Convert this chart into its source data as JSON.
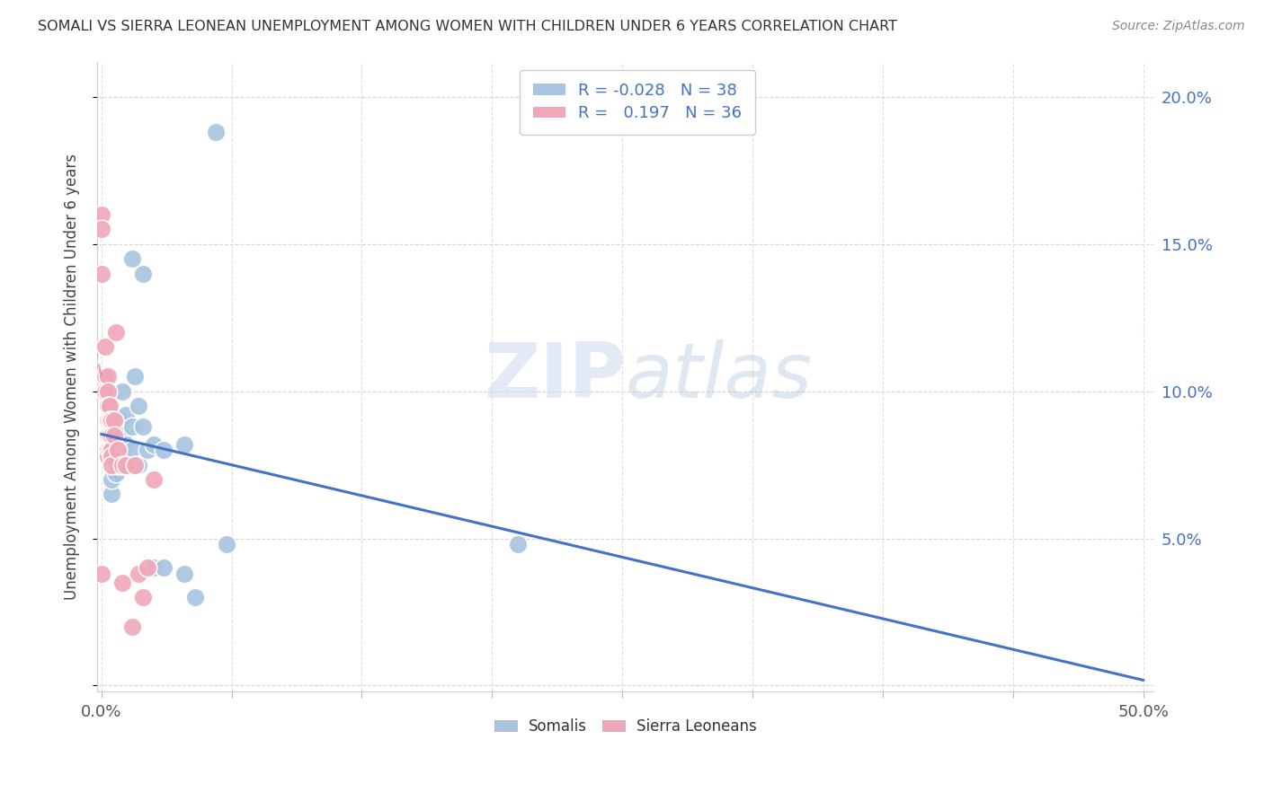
{
  "title": "SOMALI VS SIERRA LEONEAN UNEMPLOYMENT AMONG WOMEN WITH CHILDREN UNDER 6 YEARS CORRELATION CHART",
  "source": "Source: ZipAtlas.com",
  "ylabel": "Unemployment Among Women with Children Under 6 years",
  "xlim_min": 0.0,
  "xlim_max": 0.5,
  "ylim_min": 0.0,
  "ylim_max": 0.21,
  "xticks": [
    0.0,
    0.0625,
    0.125,
    0.1875,
    0.25,
    0.3125,
    0.375,
    0.4375,
    0.5
  ],
  "yticks": [
    0.0,
    0.05,
    0.1,
    0.15,
    0.2
  ],
  "ytick_right_labels": [
    "",
    "5.0%",
    "10.0%",
    "15.0%",
    "20.0%"
  ],
  "xtick_show_labels": [
    true,
    false,
    false,
    false,
    false,
    false,
    false,
    false,
    true
  ],
  "xtick_first_label": "0.0%",
  "xtick_last_label": "50.0%",
  "legend_R_somali": "-0.028",
  "legend_N_somali": "38",
  "legend_R_sierra": "0.197",
  "legend_N_sierra": "36",
  "somali_color": "#a8c4e0",
  "sierra_color": "#f0a8b8",
  "trend_somali_color": "#4472c4",
  "trend_sierra_color": "#e08090",
  "watermark_zip": "ZIP",
  "watermark_atlas": "atlas",
  "somali_x": [
    0.005,
    0.005,
    0.005,
    0.007,
    0.007,
    0.008,
    0.008,
    0.008,
    0.008,
    0.009,
    0.009,
    0.01,
    0.01,
    0.01,
    0.01,
    0.012,
    0.012,
    0.013,
    0.015,
    0.015,
    0.015,
    0.016,
    0.016,
    0.018,
    0.018,
    0.02,
    0.02,
    0.022,
    0.025,
    0.025,
    0.03,
    0.03,
    0.04,
    0.04,
    0.045,
    0.055,
    0.06,
    0.2
  ],
  "somali_y": [
    0.065,
    0.07,
    0.078,
    0.072,
    0.08,
    0.075,
    0.08,
    0.085,
    0.09,
    0.078,
    0.09,
    0.075,
    0.08,
    0.085,
    0.1,
    0.082,
    0.092,
    0.075,
    0.08,
    0.088,
    0.145,
    0.075,
    0.105,
    0.095,
    0.075,
    0.088,
    0.14,
    0.08,
    0.082,
    0.04,
    0.04,
    0.08,
    0.082,
    0.038,
    0.03,
    0.188,
    0.048,
    0.048
  ],
  "sierra_x": [
    0.0,
    0.0,
    0.0,
    0.0,
    0.002,
    0.002,
    0.002,
    0.003,
    0.003,
    0.003,
    0.003,
    0.003,
    0.003,
    0.003,
    0.004,
    0.004,
    0.004,
    0.004,
    0.005,
    0.005,
    0.005,
    0.005,
    0.005,
    0.006,
    0.006,
    0.007,
    0.008,
    0.01,
    0.01,
    0.012,
    0.015,
    0.016,
    0.018,
    0.02,
    0.022,
    0.025
  ],
  "sierra_y": [
    0.16,
    0.155,
    0.14,
    0.038,
    0.115,
    0.105,
    0.1,
    0.105,
    0.1,
    0.095,
    0.09,
    0.085,
    0.08,
    0.078,
    0.095,
    0.09,
    0.085,
    0.08,
    0.09,
    0.085,
    0.08,
    0.078,
    0.075,
    0.09,
    0.085,
    0.12,
    0.08,
    0.075,
    0.035,
    0.075,
    0.02,
    0.075,
    0.038,
    0.03,
    0.04,
    0.07
  ]
}
